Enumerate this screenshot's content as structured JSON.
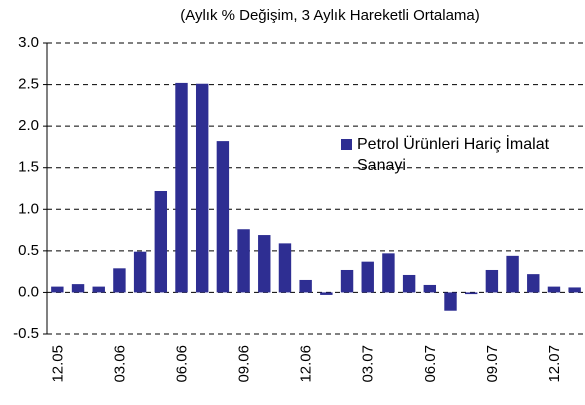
{
  "chart_data": {
    "type": "bar",
    "title": "(Aylık % Değişim, 3 Aylık Hareketli Ortalama)",
    "categories": [
      "12.05",
      null,
      null,
      "03.06",
      null,
      null,
      "06.06",
      null,
      null,
      "09.06",
      null,
      null,
      "12.06",
      null,
      null,
      "03.07",
      null,
      null,
      "06.07",
      null,
      null,
      "09.07",
      null,
      null,
      "12.07",
      null
    ],
    "series": [
      {
        "name": "Petrol Ürünleri Hariç İmalat Sanayi",
        "color": "#2e2e92",
        "values": [
          0.07,
          0.1,
          0.07,
          0.29,
          0.49,
          1.22,
          2.52,
          2.51,
          1.82,
          0.76,
          0.69,
          0.59,
          0.15,
          -0.03,
          0.27,
          0.37,
          0.47,
          0.21,
          0.09,
          -0.22,
          -0.02,
          0.27,
          0.44,
          0.22,
          0.07,
          0.06
        ]
      }
    ],
    "ylim": [
      -0.5,
      3.0
    ],
    "yticks": [
      -0.5,
      {
        "value": 0,
        "label": "0.0"
      },
      0.5,
      {
        "value": 1,
        "label": "1.0"
      },
      1.5,
      {
        "value": 2,
        "label": "2.0"
      },
      2.5,
      {
        "value": 3,
        "label": "3.0"
      }
    ],
    "grid": true,
    "legend": "right"
  }
}
